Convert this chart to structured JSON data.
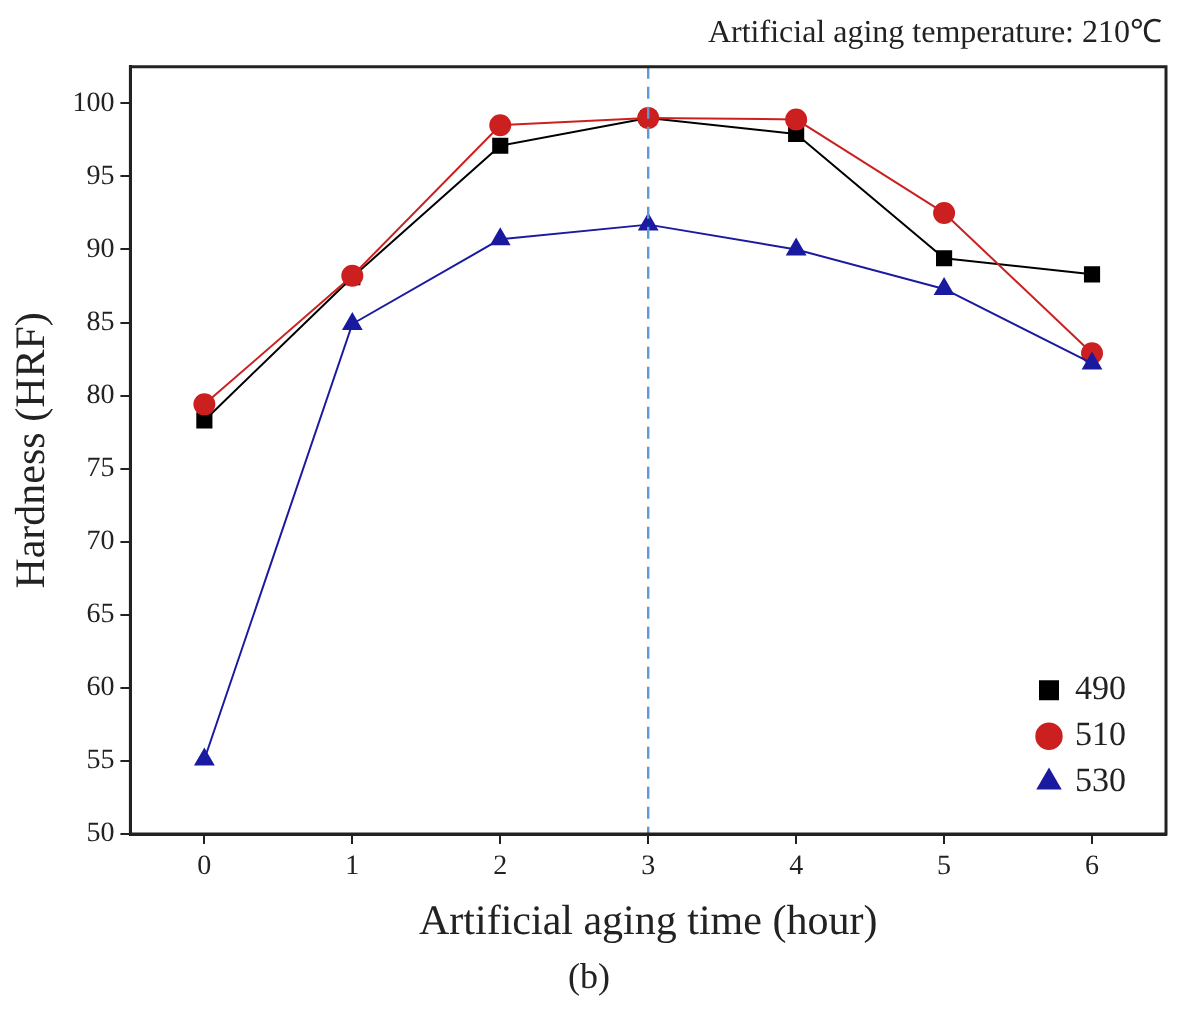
{
  "chart_data": {
    "type": "line",
    "xlabel": "Artificial aging time (hour)",
    "ylabel": "Hardness (HRF)",
    "annotations": [
      "Artificial aging temperature: 210℃",
      "(b)"
    ],
    "x": [
      0,
      1,
      2,
      3,
      4,
      5,
      6
    ],
    "series": [
      {
        "name": "490",
        "color": "#000000",
        "marker": "square",
        "values": [
          78.3,
          88.1,
          97.1,
          99.0,
          97.9,
          89.4,
          88.3
        ]
      },
      {
        "name": "510",
        "color": "#cc2020",
        "marker": "circle",
        "values": [
          79.4,
          88.2,
          98.5,
          99.0,
          98.9,
          92.5,
          82.9
        ]
      },
      {
        "name": "530",
        "color": "#1a1aa0",
        "marker": "triangle",
        "values": [
          55.1,
          84.9,
          90.7,
          91.7,
          90.0,
          87.3,
          82.2
        ]
      }
    ],
    "xlim": [
      -0.5,
      6.5
    ],
    "ylim": [
      50,
      102.5
    ],
    "xticks": [
      0,
      1,
      2,
      3,
      4,
      5,
      6
    ],
    "yticks": [
      50,
      55,
      60,
      65,
      70,
      75,
      80,
      85,
      90,
      95,
      100
    ],
    "ref_lines": [
      {
        "axis": "x",
        "value": 3,
        "color": "#5b9bd5",
        "line_style": "dashed"
      }
    ],
    "grid": false,
    "legend": "right",
    "line_style": "solid"
  }
}
